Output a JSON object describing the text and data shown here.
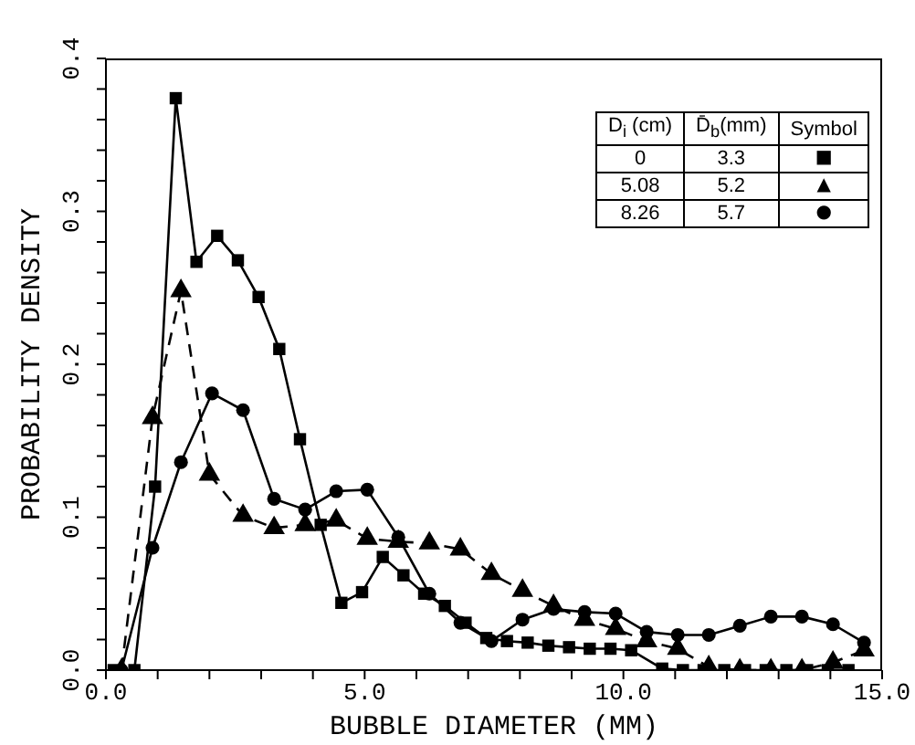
{
  "chart_data": {
    "type": "line",
    "xlabel": "BUBBLE DIAMETER  (MM)",
    "ylabel": "PROBABILITY DENSITY",
    "xlim": [
      0,
      15
    ],
    "ylim": [
      0,
      0.4
    ],
    "xticks": [
      {
        "value": 0,
        "label": "0.0"
      },
      {
        "value": 1,
        "label": null
      },
      {
        "value": 2,
        "label": null
      },
      {
        "value": 3,
        "label": null
      },
      {
        "value": 4,
        "label": null
      },
      {
        "value": 5,
        "label": "5.0"
      },
      {
        "value": 6,
        "label": null
      },
      {
        "value": 7,
        "label": null
      },
      {
        "value": 8,
        "label": null
      },
      {
        "value": 9,
        "label": null
      },
      {
        "value": 10,
        "label": "10.0"
      },
      {
        "value": 11,
        "label": null
      },
      {
        "value": 12,
        "label": null
      },
      {
        "value": 13,
        "label": null
      },
      {
        "value": 14,
        "label": null
      },
      {
        "value": 15,
        "label": "15.0"
      }
    ],
    "yticks": [
      {
        "value": 0,
        "label": "0.0"
      },
      {
        "value": 0.02,
        "label": null
      },
      {
        "value": 0.04,
        "label": null
      },
      {
        "value": 0.06,
        "label": null
      },
      {
        "value": 0.08,
        "label": null
      },
      {
        "value": 0.1,
        "label": "0.1"
      },
      {
        "value": 0.12,
        "label": null
      },
      {
        "value": 0.14,
        "label": null
      },
      {
        "value": 0.16,
        "label": null
      },
      {
        "value": 0.18,
        "label": null
      },
      {
        "value": 0.2,
        "label": "0.2"
      },
      {
        "value": 0.22,
        "label": null
      },
      {
        "value": 0.24,
        "label": null
      },
      {
        "value": 0.26,
        "label": null
      },
      {
        "value": 0.28,
        "label": null
      },
      {
        "value": 0.3,
        "label": "0.3"
      },
      {
        "value": 0.32,
        "label": null
      },
      {
        "value": 0.34,
        "label": null
      },
      {
        "value": 0.36,
        "label": null
      },
      {
        "value": 0.38,
        "label": null
      },
      {
        "value": 0.4,
        "label": "0.4"
      }
    ],
    "annotations": [
      "D$_{i}$ (cm)",
      "D̄$_{b}$(mm)",
      "Symbol",
      "0",
      "3.3",
      "■",
      "5.08",
      "5.2",
      "▲",
      "8.26",
      "5.7",
      "●"
    ],
    "series": [
      {
        "color": "#000000",
        "marker": "square",
        "line_style": "solid",
        "x": [
          0.15,
          0.55,
          0.95,
          1.35,
          1.75,
          2.15,
          2.55,
          2.95,
          3.35,
          3.75,
          4.15,
          4.55,
          4.95,
          5.35,
          5.75,
          6.15,
          6.55,
          6.95,
          7.35,
          7.75,
          8.15,
          8.55,
          8.95,
          9.35,
          9.75,
          10.15,
          10.75,
          11.15,
          11.55,
          11.95,
          12.35,
          12.75,
          13.15,
          13.55,
          13.95,
          14.35
        ],
        "values": [
          0,
          0,
          0.12,
          0.374,
          0.267,
          0.284,
          0.268,
          0.244,
          0.21,
          0.151,
          0.095,
          0.044,
          0.051,
          0.074,
          0.062,
          0.05,
          0.042,
          0.031,
          0.021,
          0.019,
          0.018,
          0.016,
          0.015,
          0.014,
          0.014,
          0.013,
          0.001,
          0,
          0,
          0,
          0,
          0,
          0,
          0,
          0,
          0
        ]
      },
      {
        "color": "#000000",
        "marker": "circle",
        "line_style": "solid",
        "x": [
          0.3,
          0.9,
          1.45,
          2.05,
          2.65,
          3.25,
          3.85,
          4.45,
          5.05,
          5.65,
          6.25,
          6.85,
          7.45,
          8.05,
          8.65,
          9.25,
          9.85,
          10.45,
          11.05,
          11.65,
          12.25,
          12.85,
          13.45,
          14.05,
          14.65
        ],
        "values": [
          0,
          0.08,
          0.136,
          0.181,
          0.17,
          0.112,
          0.105,
          0.117,
          0.118,
          0.087,
          0.05,
          0.031,
          0.019,
          0.033,
          0.04,
          0.038,
          0.037,
          0.025,
          0.023,
          0.023,
          0.029,
          0.035,
          0.035,
          0.03,
          0.018
        ]
      },
      {
        "color": "#000000",
        "marker": "triangle",
        "line_style": "dashed",
        "x": [
          0.3,
          0.9,
          1.45,
          2.0,
          2.65,
          3.25,
          3.85,
          4.45,
          5.05,
          5.65,
          6.25,
          6.85,
          7.45,
          8.05,
          8.65,
          9.25,
          9.85,
          10.45,
          11.05,
          11.65,
          12.25,
          12.85,
          13.45,
          14.05,
          14.65
        ],
        "values": [
          0,
          0.165,
          0.248,
          0.128,
          0.101,
          0.093,
          0.095,
          0.098,
          0.086,
          0.084,
          0.083,
          0.079,
          0.063,
          0.052,
          0.042,
          0.033,
          0.027,
          0.019,
          0.014,
          0.002,
          0,
          0,
          0,
          0.005,
          0.013
        ]
      }
    ]
  }
}
